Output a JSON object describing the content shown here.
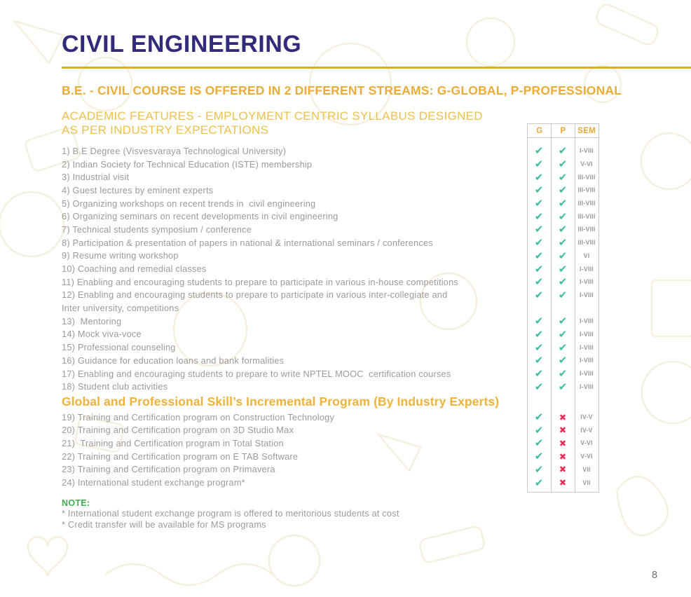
{
  "page": {
    "title": "CIVIL ENGINEERING",
    "stream_heading": "B.E. - CIVIL COURSE IS OFFERED IN 2 DIFFERENT STREAMS: G-GLOBAL, P-PROFESSIONAL",
    "features_heading_line1": "ACADEMIC FEATURES - EMPLOYMENT CENTRIC SYLLABUS DESIGNED",
    "features_heading_line2": "AS PER INDUSTRY EXPECTATIONS",
    "page_number": "8"
  },
  "table": {
    "headers": [
      "G",
      "P",
      "SEM"
    ]
  },
  "icons": {
    "check-icon": "✔",
    "cross-icon": "✖"
  },
  "rows": [
    {
      "type": "item",
      "text": "1) B.E Degree (Visvesvaraya Technological University)",
      "g": "check",
      "p": "check",
      "sem": "I-VIII"
    },
    {
      "type": "item",
      "text": "2) Indian Society for Technical Education (ISTE) membership",
      "g": "check",
      "p": "check",
      "sem": "V-VI"
    },
    {
      "type": "item",
      "text": "3) Industrial visit",
      "g": "check",
      "p": "check",
      "sem": "III-VIII"
    },
    {
      "type": "item",
      "text": "4) Guest lectures by eminent experts",
      "g": "check",
      "p": "check",
      "sem": "III-VIII"
    },
    {
      "type": "item",
      "text": "5) Organizing workshops on recent trends in  civil engineering",
      "g": "check",
      "p": "check",
      "sem": "III-VIII"
    },
    {
      "type": "item",
      "text": "6) Organizing seminars on recent developments in civil engineering",
      "g": "check",
      "p": "check",
      "sem": "III-VIII"
    },
    {
      "type": "item",
      "text": "7) Technical students symposium / conference",
      "g": "check",
      "p": "check",
      "sem": "III-VIII"
    },
    {
      "type": "item",
      "text": "8) Participation & presentation of papers in national & international seminars / conferences",
      "g": "check",
      "p": "check",
      "sem": "III-VIII"
    },
    {
      "type": "item",
      "text": "9) Resume writing workshop",
      "g": "check",
      "p": "check",
      "sem": "VI"
    },
    {
      "type": "item",
      "text": "10) Coaching and remedial classes",
      "g": "check",
      "p": "check",
      "sem": "I-VIII"
    },
    {
      "type": "item",
      "text": "11) Enabling and encouraging students to prepare to participate in various in-house competitions",
      "g": "check",
      "p": "check",
      "sem": "I-VIII"
    },
    {
      "type": "item",
      "text": "12) Enabling and encouraging students to prepare to participate in various inter-collegiate and",
      "g": "check",
      "p": "check",
      "sem": "I-VIII"
    },
    {
      "type": "cont",
      "text": "Inter university, competitions"
    },
    {
      "type": "item",
      "text": "13)  Mentoring",
      "g": "check",
      "p": "check",
      "sem": "I-VIII"
    },
    {
      "type": "item",
      "text": "14) Mock viva-voce",
      "g": "check",
      "p": "check",
      "sem": "I-VIII"
    },
    {
      "type": "item",
      "text": "15) Professional counseling",
      "g": "check",
      "p": "check",
      "sem": "I-VIII"
    },
    {
      "type": "item",
      "text": "16) Guidance for education loans and bank formalities",
      "g": "check",
      "p": "check",
      "sem": "I-VIII"
    },
    {
      "type": "item",
      "text": "17) Enabling and encouraging students to prepare to write NPTEL MOOC  certification courses",
      "g": "check",
      "p": "check",
      "sem": "I-VIII"
    },
    {
      "type": "item",
      "text": "18) Student club activities",
      "g": "check",
      "p": "check",
      "sem": "I-VIII"
    },
    {
      "type": "heading",
      "text": "Global and Professional Skill’s Incremental Program (By Industry Experts)"
    },
    {
      "type": "item",
      "text": "19) Training and Certification program on Construction Technology",
      "g": "check",
      "p": "cross",
      "sem": "IV-V"
    },
    {
      "type": "item",
      "text": "20) Training and Certification program on 3D Studio Max",
      "g": "check",
      "p": "cross",
      "sem": "IV-V"
    },
    {
      "type": "item",
      "text": "21)  Training and Certification program in Total Station",
      "g": "check",
      "p": "cross",
      "sem": "V-VI"
    },
    {
      "type": "item",
      "text": "22) Training and Certification program on E TAB Software",
      "g": "check",
      "p": "cross",
      "sem": "V-VI"
    },
    {
      "type": "item",
      "text": "23) Training and Certification program on Primavera",
      "g": "check",
      "p": "cross",
      "sem": "VII"
    },
    {
      "type": "item",
      "text": "24) International student exchange program*",
      "g": "check",
      "p": "cross",
      "sem": "VII"
    }
  ],
  "note": {
    "label": "NOTE:",
    "lines": [
      "* International student exchange program is offered to meritorious students at cost",
      "* Credit transfer will be available for MS programs"
    ]
  },
  "colors": {
    "title_navy": "#322b7c",
    "gold_rule": "#e2ac21",
    "gold_heading": "#ebac38",
    "gold_light_heading": "#ecc14d",
    "body_gray": "#9e9a96",
    "check_teal": "#3cbd9c",
    "cross_red": "#e73059",
    "note_green": "#3fae4e",
    "table_border": "#c9c9c9"
  }
}
